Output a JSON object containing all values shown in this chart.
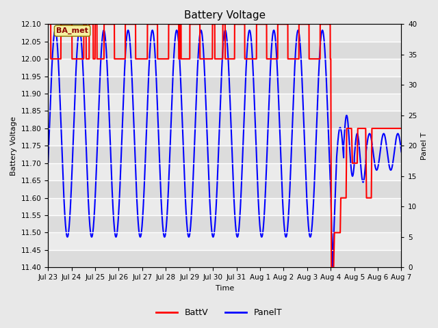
{
  "title": "Battery Voltage",
  "xlabel": "Time",
  "ylabel_left": "Battery Voltage",
  "ylabel_right": "Panel T",
  "ylim_left": [
    11.4,
    12.1
  ],
  "ylim_right": [
    0,
    40
  ],
  "yticks_left": [
    11.4,
    11.45,
    11.5,
    11.55,
    11.6,
    11.65,
    11.7,
    11.75,
    11.8,
    11.85,
    11.9,
    11.95,
    12.0,
    12.05,
    12.1
  ],
  "yticks_right": [
    0,
    5,
    10,
    15,
    20,
    25,
    30,
    35,
    40
  ],
  "xtick_labels": [
    "Jul 23",
    "Jul 24",
    "Jul 25",
    "Jul 26",
    "Jul 27",
    "Jul 28",
    "Jul 29",
    "Jul 30",
    "Jul 31",
    "Aug 1",
    "Aug 2",
    "Aug 3",
    "Aug 4",
    "Aug 5",
    "Aug 6",
    "Aug 7"
  ],
  "annotation_text": "BA_met",
  "bg_color": "#e8e8e8",
  "band_colors": [
    "#dcdcdc",
    "#ebebeb"
  ],
  "legend_entries": [
    "BattV",
    "PanelT"
  ],
  "legend_colors": [
    "red",
    "blue"
  ],
  "batt_color": "red",
  "panel_color": "blue",
  "linewidth": 1.5,
  "title_fontsize": 11,
  "label_fontsize": 8,
  "tick_fontsize": 7.5
}
